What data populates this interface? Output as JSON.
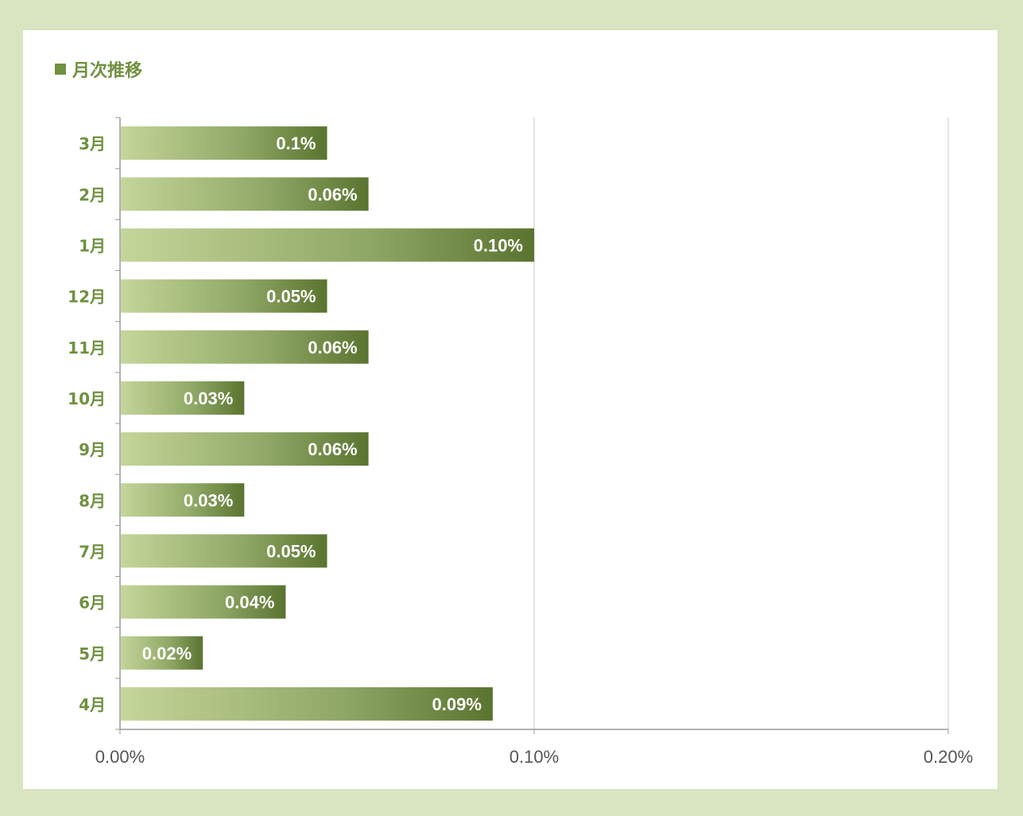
{
  "title": "月次推移",
  "colors": {
    "frame": "#d9e4c0",
    "accent": "#6f9140",
    "bar_light": "#c4d69a",
    "bar_mid": "#8fa765",
    "bar_dark": "#5a7430",
    "grid": "#c8c8c8"
  },
  "chart_data": {
    "type": "bar",
    "orientation": "horizontal",
    "title": "月次推移",
    "categories": [
      "3月",
      "2月",
      "1月",
      "12月",
      "11月",
      "10月",
      "9月",
      "8月",
      "7月",
      "6月",
      "5月",
      "4月"
    ],
    "values": [
      0.05,
      0.06,
      0.1,
      0.05,
      0.06,
      0.03,
      0.06,
      0.03,
      0.05,
      0.04,
      0.02,
      0.09
    ],
    "data_labels": [
      "0.1%",
      "0.06%",
      "0.10%",
      "0.05%",
      "0.06%",
      "0.03%",
      "0.06%",
      "0.03%",
      "0.05%",
      "0.04%",
      "0.02%",
      "0.09%"
    ],
    "x_ticks": [
      0,
      0.1,
      0.2
    ],
    "x_tick_labels": [
      "0.00%",
      "0.10%",
      "0.20%"
    ],
    "xlim": [
      0,
      0.2
    ],
    "unit": "%",
    "grid": true,
    "legend": "none"
  }
}
